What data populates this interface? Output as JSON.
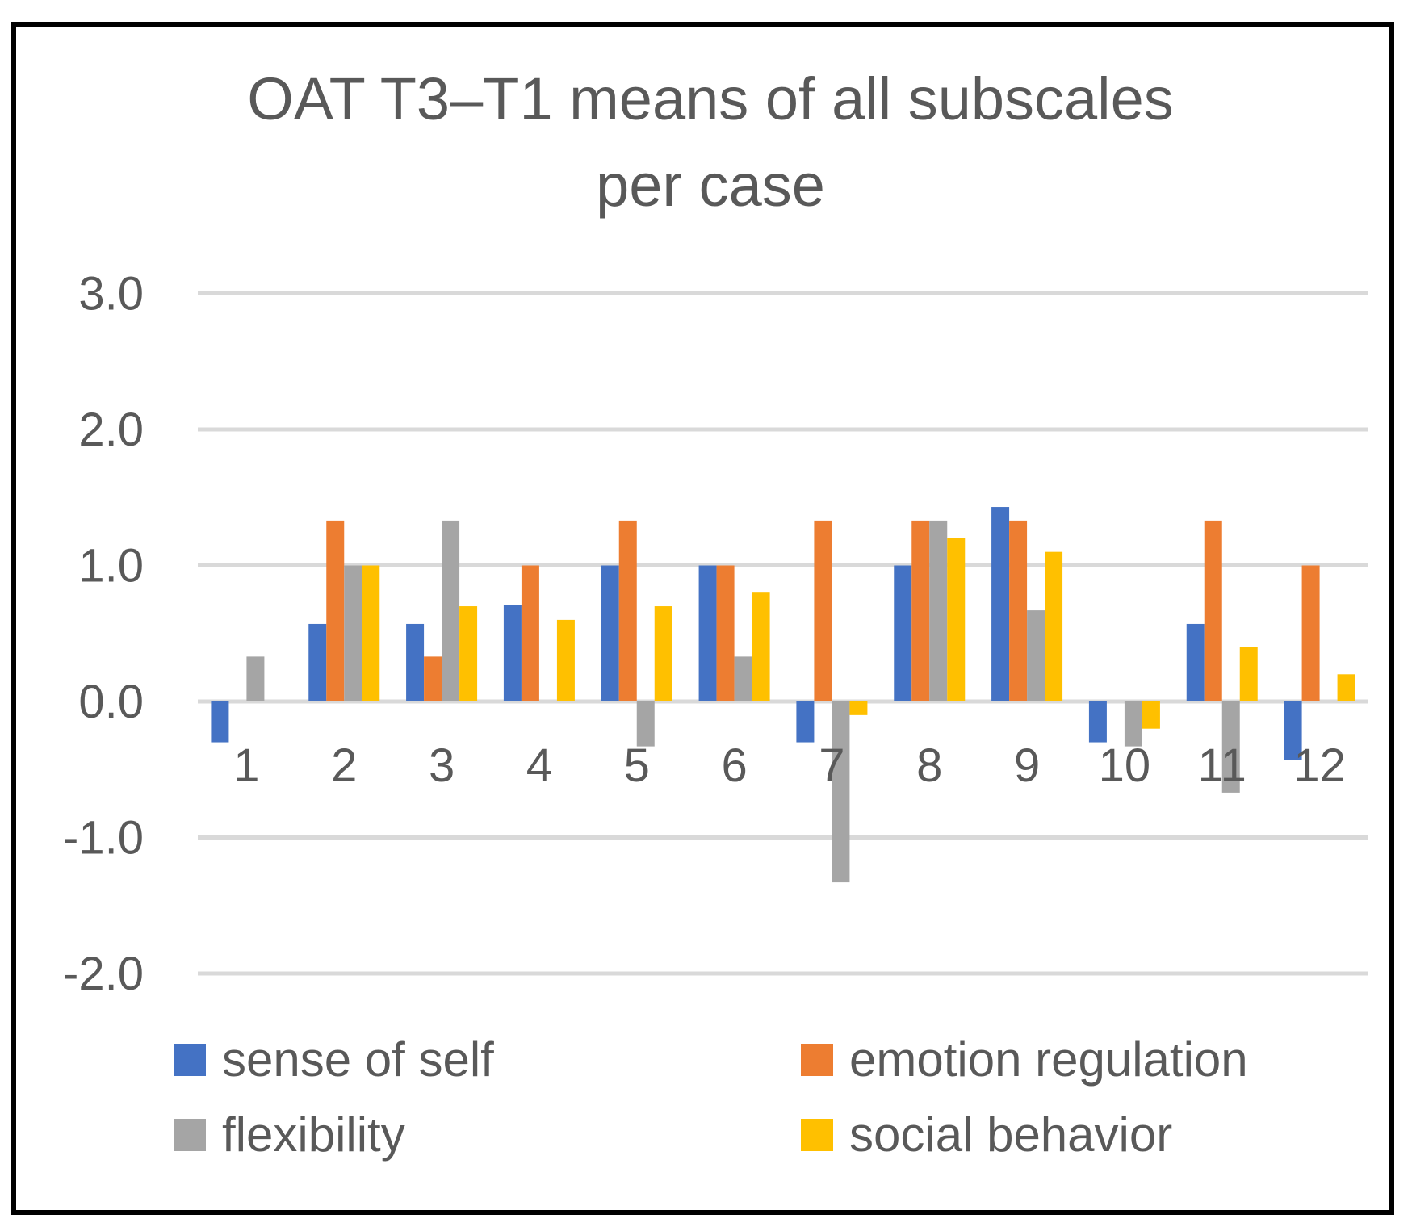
{
  "chart_data": {
    "type": "bar",
    "title_lines": [
      "OAT T3–T1 means of all subscales",
      "per case"
    ],
    "xlabel": "",
    "ylabel": "",
    "categories": [
      "1",
      "2",
      "3",
      "4",
      "5",
      "6",
      "7",
      "8",
      "9",
      "10",
      "11",
      "12"
    ],
    "y_ticks": [
      "3.0",
      "2.0",
      "1.0",
      "0.0",
      "-1.0",
      "-2.0"
    ],
    "ylim": [
      -2.0,
      3.0
    ],
    "grid": true,
    "legend_position": "bottom",
    "series": [
      {
        "name": "sense of self",
        "color": "#4472C4",
        "values": [
          -0.3,
          0.57,
          0.57,
          0.71,
          1.0,
          1.0,
          -0.3,
          1.0,
          1.43,
          -0.3,
          0.57,
          -0.43
        ]
      },
      {
        "name": "emotion regulation",
        "color": "#ED7D31",
        "values": [
          0,
          1.33,
          0.33,
          1.0,
          1.33,
          1.0,
          1.33,
          1.33,
          1.33,
          0,
          1.33,
          1.0
        ]
      },
      {
        "name": "flexibility",
        "color": "#A5A5A5",
        "values": [
          0.33,
          1.0,
          1.33,
          0,
          -0.33,
          0.33,
          -1.33,
          1.33,
          0.67,
          -0.33,
          -0.67,
          0
        ]
      },
      {
        "name": "social behavior",
        "color": "#FFC000",
        "values": [
          0,
          1.0,
          0.7,
          0.6,
          0.7,
          0.8,
          -0.1,
          1.2,
          1.1,
          -0.2,
          0.4,
          0.2
        ]
      }
    ]
  }
}
